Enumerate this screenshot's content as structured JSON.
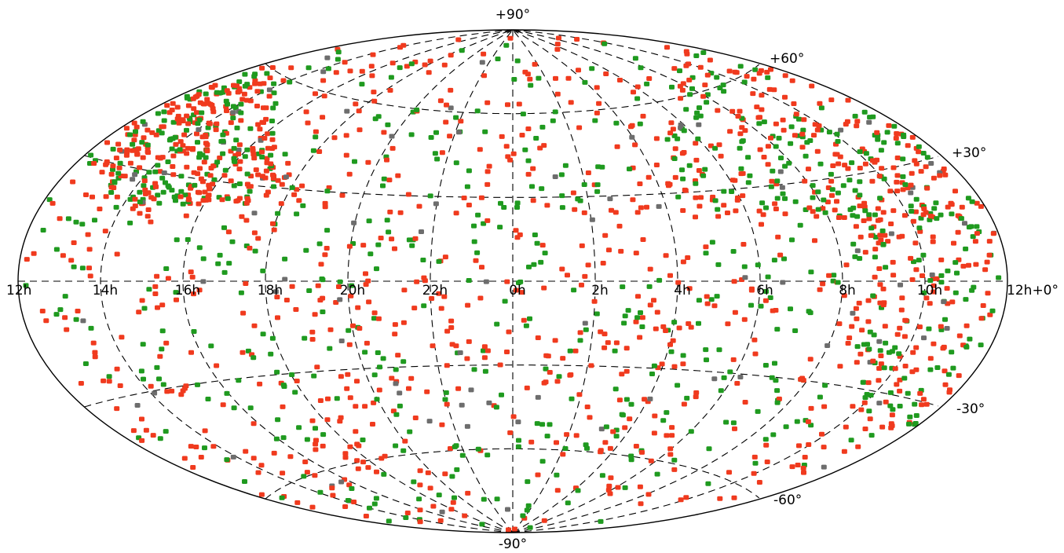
{
  "projection": "aitoff all-sky, equatorial coordinates",
  "colors": {
    "red": "#f03a1e",
    "green": "#1f9a1f",
    "gray": "#6d6d6d",
    "grid": "#000000",
    "background": "#ffffff"
  },
  "ra_labels": [
    {
      "ra": 12,
      "text": "12h"
    },
    {
      "ra": 10,
      "text": "10h"
    },
    {
      "ra": 8,
      "text": "8h"
    },
    {
      "ra": 6,
      "text": "6h"
    },
    {
      "ra": 4,
      "text": "4h"
    },
    {
      "ra": 2,
      "text": "2h"
    },
    {
      "ra": 0,
      "text": "0h"
    },
    {
      "ra": 22,
      "text": "22h"
    },
    {
      "ra": 20,
      "text": "20h"
    },
    {
      "ra": 18,
      "text": "18h"
    },
    {
      "ra": 16,
      "text": "16h"
    },
    {
      "ra": 14,
      "text": "14h"
    },
    {
      "ra": 12.0001,
      "text": "12h+0°"
    }
  ],
  "dec_labels": [
    {
      "dec": 90,
      "text": "+90°"
    },
    {
      "dec": 60,
      "text": "+60°"
    },
    {
      "dec": 30,
      "text": "+30°"
    },
    {
      "dec": -30,
      "text": "-30°"
    },
    {
      "dec": -60,
      "text": "-60°"
    },
    {
      "dec": -90,
      "text": "-90°"
    }
  ],
  "source_density": {
    "approx_total": 2000,
    "population_fraction": {
      "red": 0.58,
      "green": 0.37,
      "gray": 0.05
    }
  }
}
